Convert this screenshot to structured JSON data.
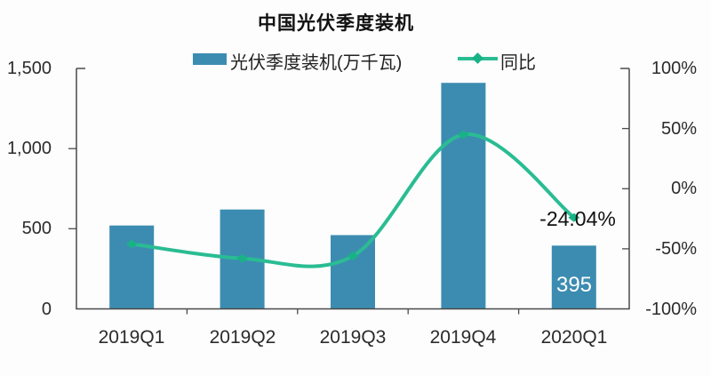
{
  "chart_data": {
    "type": "combo",
    "title": "中国光伏季度装机",
    "categories": [
      "2019Q1",
      "2019Q2",
      "2019Q3",
      "2019Q4",
      "2020Q1"
    ],
    "series": [
      {
        "name": "光伏季度装机(万千瓦)",
        "type": "bar",
        "axis": "left",
        "values": [
          520,
          620,
          460,
          1410,
          395
        ],
        "color": "#3c8cb1"
      },
      {
        "name": "同比",
        "type": "line",
        "axis": "right",
        "unit": "%",
        "values": [
          -46,
          -58,
          -56,
          45,
          -24.04
        ],
        "color": "#2abc93",
        "marker": "diamond",
        "marker_color": "#18b286"
      }
    ],
    "left_axis": {
      "range": [
        0,
        1500
      ],
      "tick_values": [
        1500,
        1000,
        500,
        0
      ],
      "tick_labels": [
        "1,500",
        "1,000",
        "500",
        "0"
      ]
    },
    "right_axis": {
      "range": [
        -100,
        100
      ],
      "tick_values": [
        100,
        50,
        0,
        -50,
        -100
      ],
      "tick_labels": [
        "100%",
        "50%",
        "0%",
        "-50%",
        "-100%"
      ]
    },
    "legend_position": "top",
    "grid": false,
    "axis_color": "#4a4a4a",
    "annotations": [
      {
        "text": "-24.04%",
        "attached_to": "line point 2020Q1",
        "color": "#111111"
      },
      {
        "text": "395",
        "attached_to": "bar 2020Q1",
        "color": "#ffffff"
      }
    ]
  }
}
